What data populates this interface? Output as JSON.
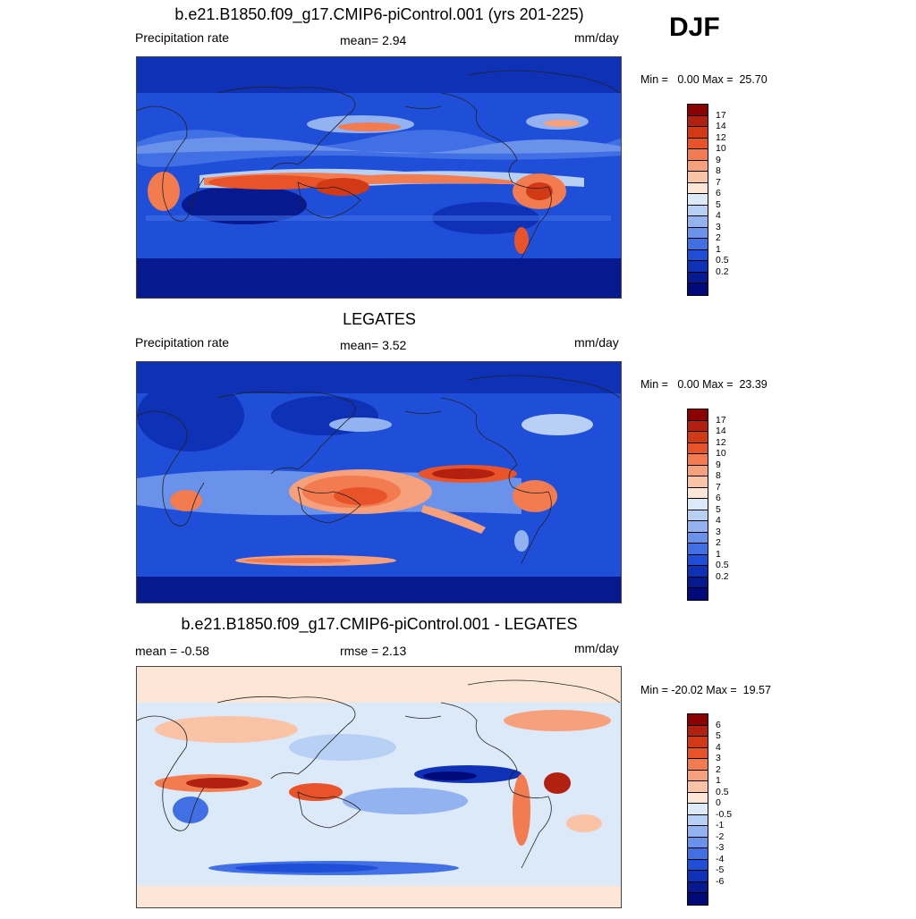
{
  "season": "DJF",
  "panels": [
    {
      "title": "b.e21.B1850.f09_g17.CMIP6-piControl.001 (yrs 201-225)",
      "left_label": "Precipitation rate",
      "center_label": "mean=   2.94",
      "units": "mm/day",
      "minmax": "Min =   0.00 Max =  25.70",
      "colorbar": {
        "colors": [
          "#8b0000",
          "#b22010",
          "#d23a16",
          "#e8532a",
          "#f27b50",
          "#f7a07c",
          "#fbc3a6",
          "#fde6d6",
          "#dce9f8",
          "#b9d0f5",
          "#93b3f0",
          "#6b92ea",
          "#4170e4",
          "#1f4fd9",
          "#0e31b5",
          "#06198f",
          "#000a78"
        ],
        "labels": [
          "17",
          "14",
          "12",
          "10",
          "9",
          "8",
          "7",
          "6",
          "5",
          "4",
          "3",
          "2",
          "1",
          "0.5",
          "0.2"
        ]
      }
    },
    {
      "title": "LEGATES",
      "left_label": "Precipitation rate",
      "center_label": "mean=   3.52",
      "units": "mm/day",
      "minmax": "Min =   0.00 Max =  23.39",
      "colorbar": {
        "colors": [
          "#8b0000",
          "#b22010",
          "#d23a16",
          "#e8532a",
          "#f27b50",
          "#f7a07c",
          "#fbc3a6",
          "#fde6d6",
          "#dce9f8",
          "#b9d0f5",
          "#93b3f0",
          "#6b92ea",
          "#4170e4",
          "#1f4fd9",
          "#0e31b5",
          "#06198f",
          "#000a78"
        ],
        "labels": [
          "17",
          "14",
          "12",
          "10",
          "9",
          "8",
          "7",
          "6",
          "5",
          "4",
          "3",
          "2",
          "1",
          "0.5",
          "0.2"
        ]
      }
    },
    {
      "title": "b.e21.B1850.f09_g17.CMIP6-piControl.001 - LEGATES",
      "left_label": "mean =  -0.58",
      "center_label": "rmse =   2.13",
      "units": "mm/day",
      "minmax": "Min = -20.02 Max =  19.57",
      "colorbar": {
        "colors": [
          "#8b0000",
          "#b22010",
          "#d23a16",
          "#e8532a",
          "#f27b50",
          "#f7a07c",
          "#fbc3a6",
          "#fde6d6",
          "#dce9f8",
          "#b9d0f5",
          "#93b3f0",
          "#6b92ea",
          "#4170e4",
          "#1f4fd9",
          "#0e31b5",
          "#06198f",
          "#000a78"
        ],
        "labels": [
          "6",
          "5",
          "4",
          "3",
          "2",
          "1",
          "0.5",
          "0",
          "-0.5",
          "-1",
          "-2",
          "-3",
          "-4",
          "-5",
          "-6"
        ]
      }
    }
  ]
}
